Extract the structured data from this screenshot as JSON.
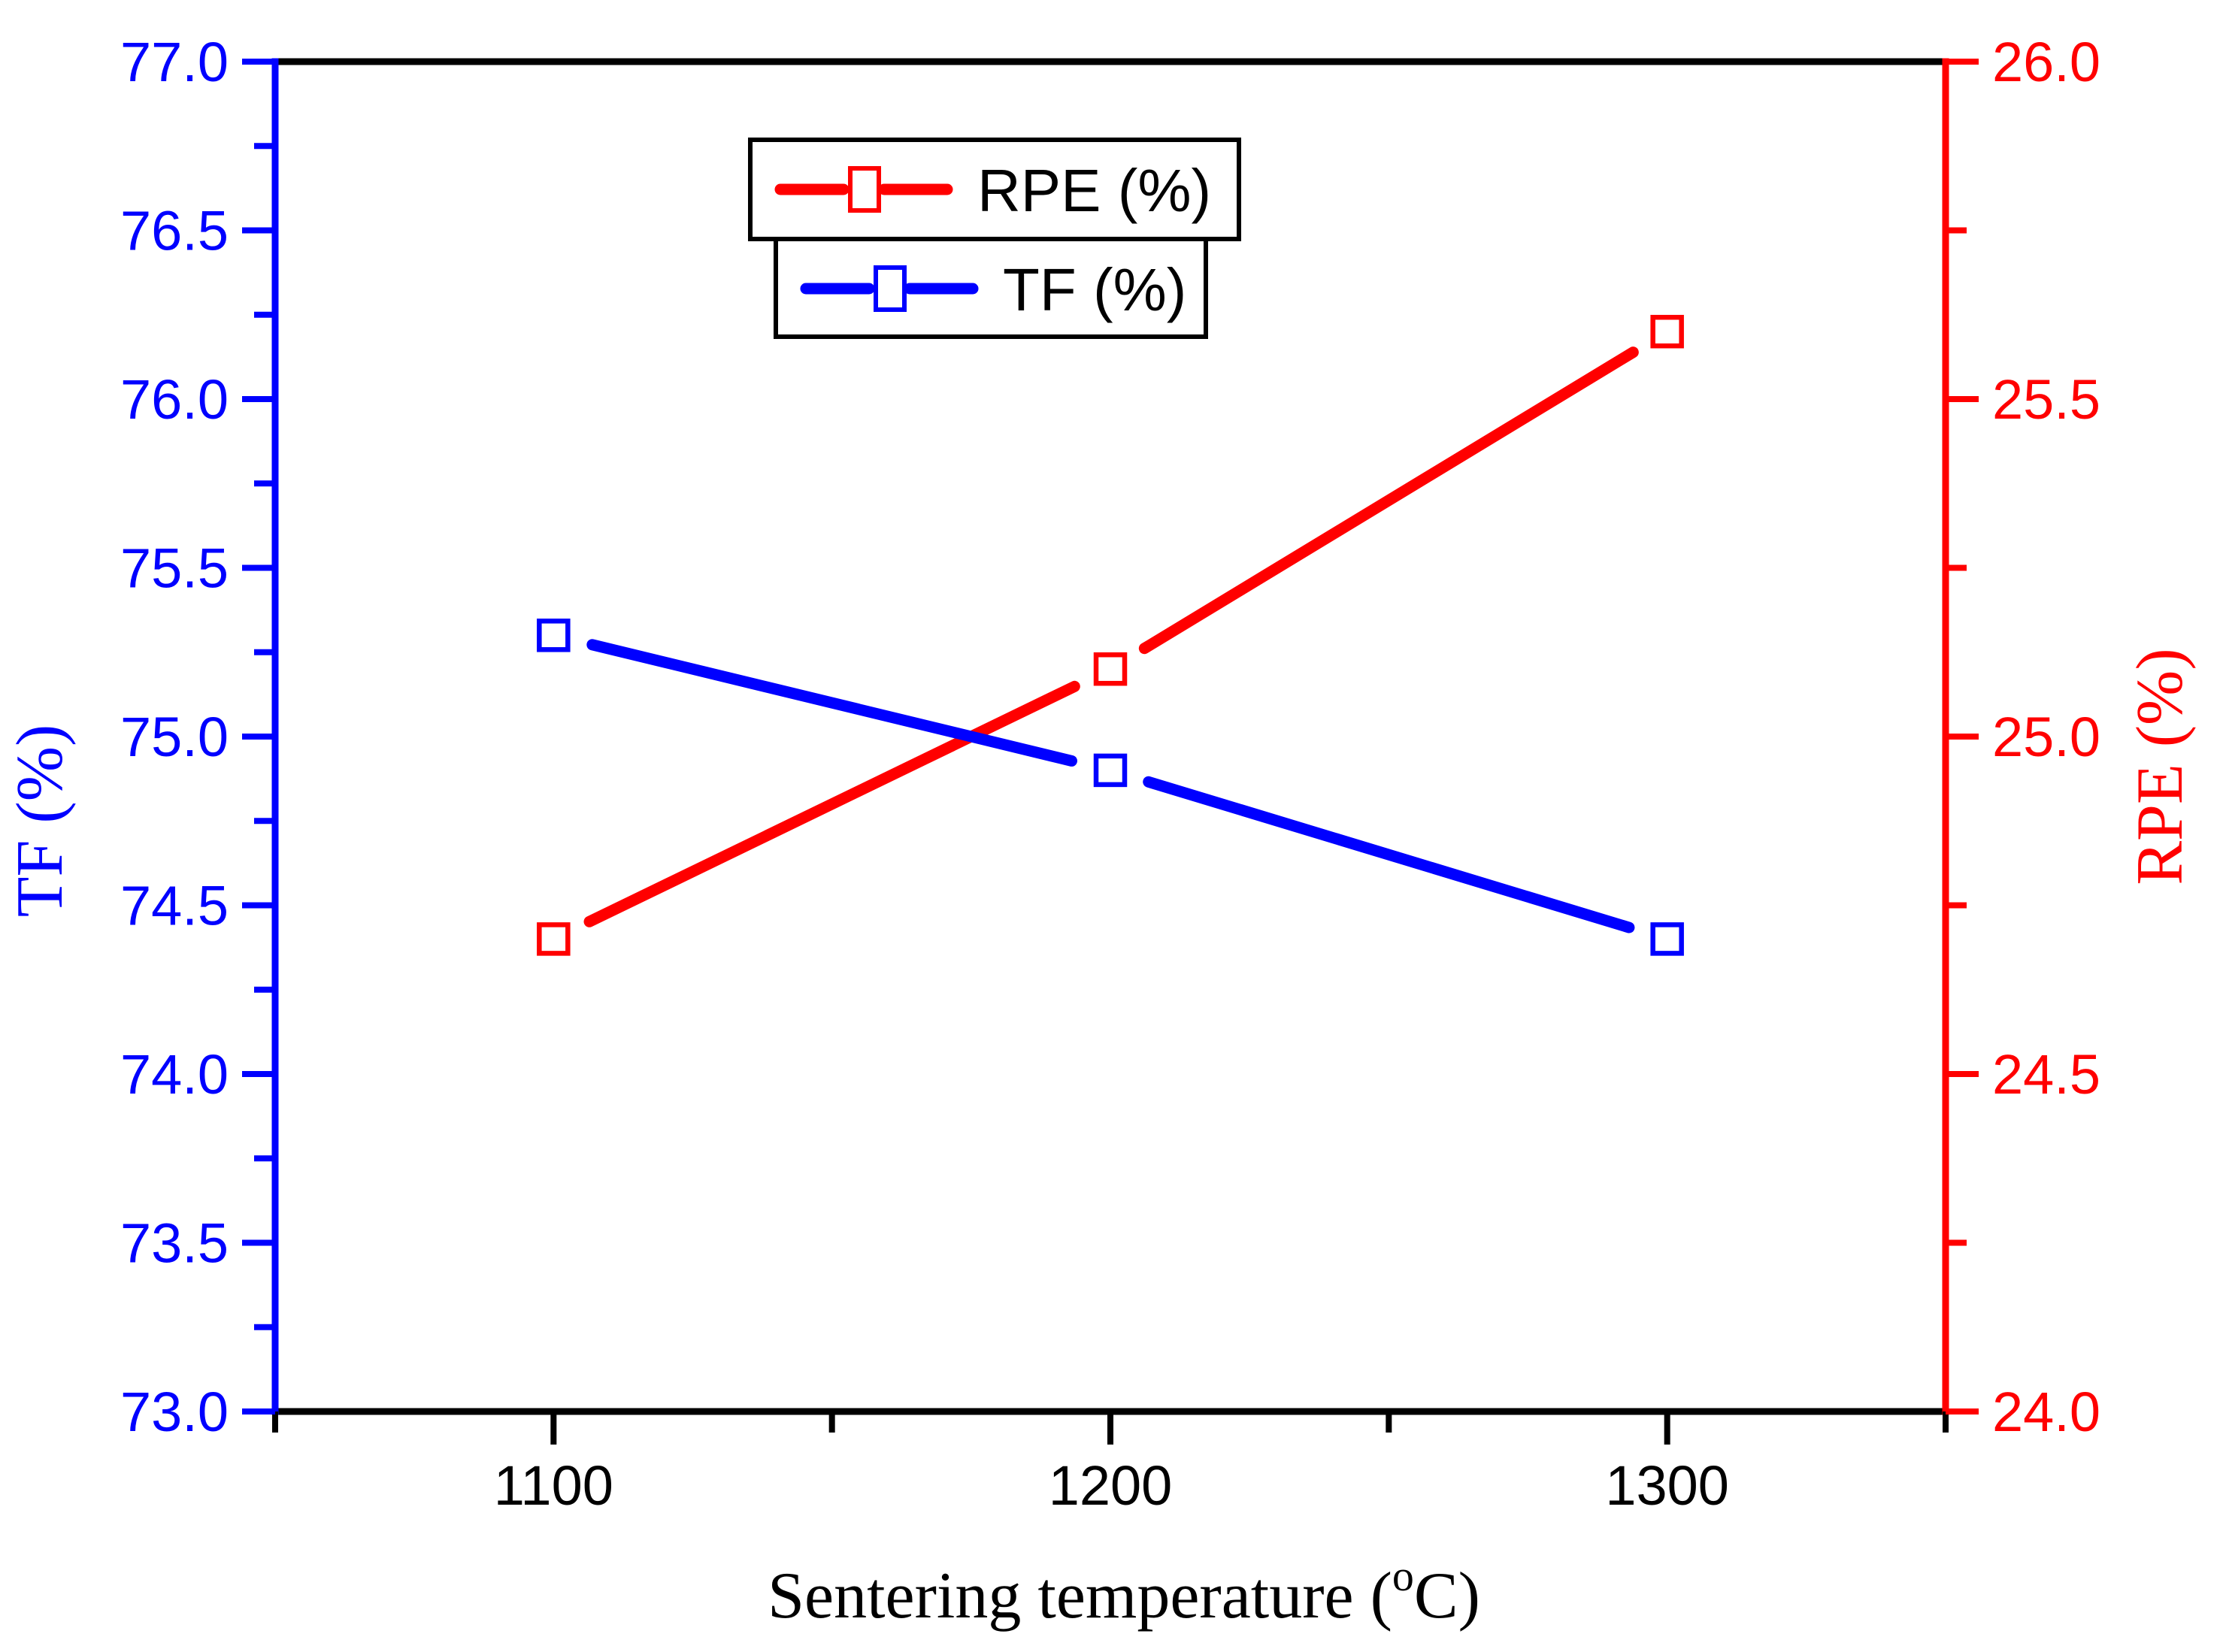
{
  "figure": {
    "background": "#ffffff",
    "frame_color": "#000000"
  },
  "chart_data": {
    "type": "line",
    "title": "",
    "x": [
      1100,
      1200,
      1300
    ],
    "series": [
      {
        "name": "RPE (%)",
        "axis": "right",
        "color": "#ff0000",
        "marker": "open-square",
        "values": [
          24.7,
          25.1,
          25.6
        ]
      },
      {
        "name": "TF (%)",
        "axis": "left",
        "color": "#0000ff",
        "marker": "open-square",
        "values": [
          75.3,
          74.9,
          74.4
        ]
      }
    ],
    "xlabel": "Sentering temperature (°C)",
    "xlabel_parts": {
      "prefix": "Sentering temperature (",
      "superscript": "o",
      "suffix": "C)"
    },
    "ylabel_left": "TF (%)",
    "ylabel_right": "RPE (%)",
    "x_axis": {
      "min": 1050,
      "max": 1350,
      "color": "#000000",
      "major_ticks": [
        1100,
        1200,
        1300
      ],
      "tick_labels": [
        "1100",
        "1200",
        "1300"
      ],
      "minor_ticks": [
        1050,
        1150,
        1250,
        1350
      ]
    },
    "left_axis": {
      "min": 73.0,
      "max": 77.0,
      "color": "#0000ff",
      "major_ticks": [
        73.0,
        73.5,
        74.0,
        74.5,
        75.0,
        75.5,
        76.0,
        76.5,
        77.0
      ],
      "tick_labels": [
        "73.0",
        "73.5",
        "74.0",
        "74.5",
        "75.0",
        "75.5",
        "76.0",
        "76.5",
        "77.0"
      ],
      "minor_ticks": [
        73.25,
        73.75,
        74.25,
        74.75,
        75.25,
        75.75,
        76.25,
        76.75
      ]
    },
    "right_axis": {
      "min": 24.0,
      "max": 26.0,
      "color": "#ff0000",
      "major_ticks": [
        24.0,
        24.5,
        25.0,
        25.5,
        26.0
      ],
      "tick_labels": [
        "24.0",
        "24.5",
        "25.0",
        "25.5",
        "26.0"
      ],
      "minor_ticks": [
        24.25,
        24.75,
        25.25,
        25.75
      ]
    },
    "legend": {
      "position": "top-center",
      "entries": [
        "RPE (%)",
        "TF (%)"
      ]
    },
    "grid": false
  }
}
